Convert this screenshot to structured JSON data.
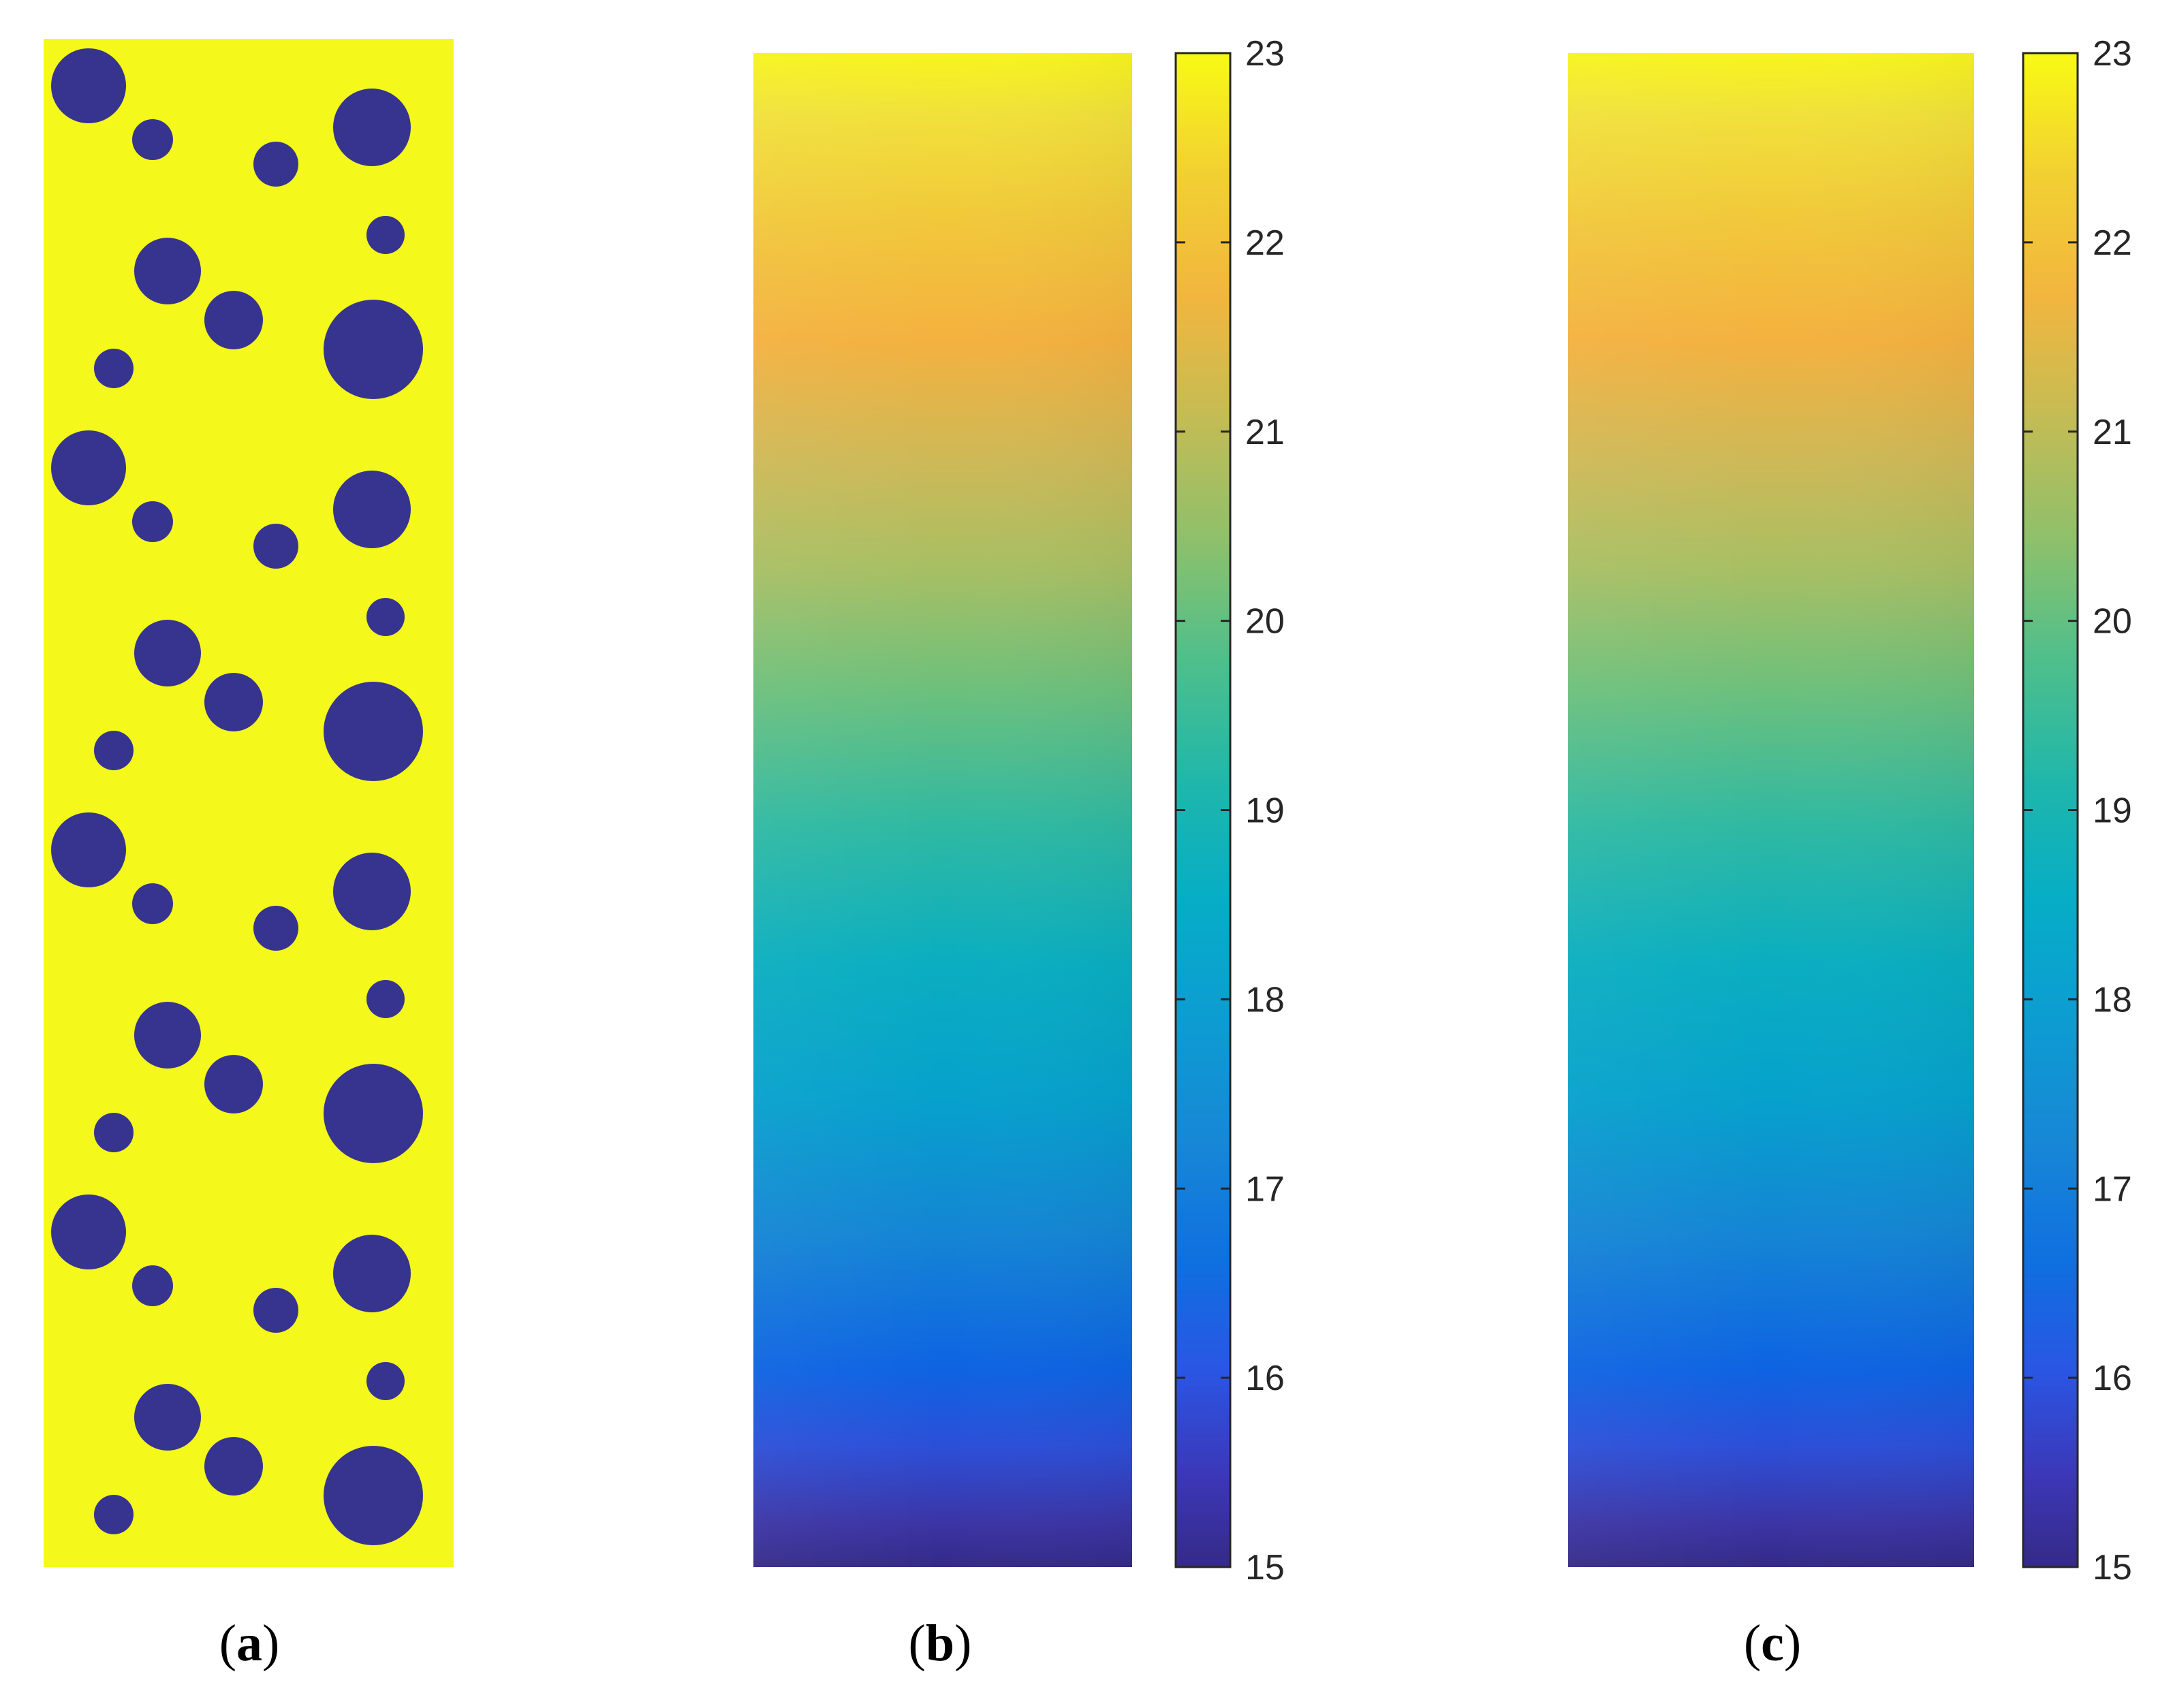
{
  "panels": [
    {
      "id": "a",
      "caption": "a",
      "type": "microstructure"
    },
    {
      "id": "b",
      "caption": "b",
      "type": "field"
    },
    {
      "id": "c",
      "caption": "c",
      "type": "field"
    }
  ],
  "colorbar": {
    "min": 15,
    "max": 23,
    "ticks": [
      "15",
      "16",
      "17",
      "18",
      "19",
      "20",
      "21",
      "22",
      "23"
    ]
  },
  "colors": {
    "matrix": "#f5f91b",
    "inclusion": "#36348f",
    "colormap": [
      "#3e26a8",
      "#4743f6",
      "#2d69f2",
      "#1d8ddb",
      "#0ea9cf",
      "#28b8a8",
      "#6cc46e",
      "#c9bc4f",
      "#fbb43a",
      "#f5d92c",
      "#f9fb15"
    ]
  }
}
